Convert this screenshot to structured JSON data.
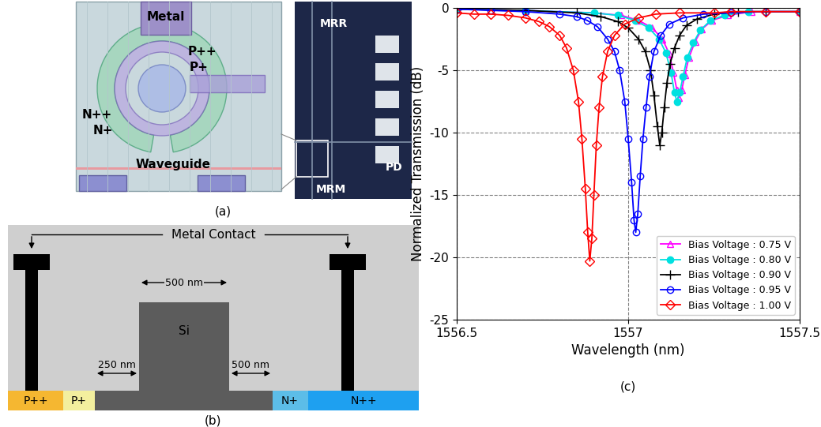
{
  "panel_a": {
    "caption": "(a)",
    "layout_labels": {
      "metal": "Metal",
      "p_plus_plus": "P++",
      "p_plus": "P+",
      "n_plus_plus": "N++",
      "n_plus": "N+",
      "waveguide": "Waveguide"
    },
    "micrograph_labels": {
      "mrr": "MRR",
      "pd": "PD",
      "mrm": "MRM"
    }
  },
  "panel_b": {
    "caption": "(b)",
    "contact_label": "Metal Contact",
    "core": "Si",
    "regions": {
      "p_plus_plus": "P++",
      "p_plus": "P+",
      "n_plus": "N+",
      "n_plus_plus": "N++"
    },
    "dimensions": {
      "rib_width": "500 nm",
      "p_gap": "250 nm",
      "n_gap": "500 nm"
    }
  },
  "chart_data": {
    "type": "line",
    "caption": "(c)",
    "x_label": "Wavelength (nm)",
    "y_label": "Normalized Transmission (dB)",
    "xlim": [
      1556.5,
      1557.5
    ],
    "xticks": [
      1556.5,
      1557,
      1557.5
    ],
    "ylim": [
      -25,
      0
    ],
    "yticks": [
      -25,
      -20,
      -15,
      -10,
      -5,
      0
    ],
    "grid": true,
    "legend": "lower right",
    "series": [
      {
        "name": "Bias Voltage : 0.75 V",
        "color": "#ff00ff",
        "marker": "triangle",
        "line_style": "solid",
        "x": [
          1556.5,
          1556.7,
          1556.9,
          1556.98,
          1557.03,
          1557.07,
          1557.1,
          1557.12,
          1557.132,
          1557.142,
          1557.148,
          1557.156,
          1557.165,
          1557.177,
          1557.195,
          1557.215,
          1557.245,
          1557.29,
          1557.36,
          1557.5
        ],
        "values": [
          -0.1,
          -0.2,
          -0.4,
          -0.6,
          -1.0,
          -1.6,
          -2.5,
          -3.7,
          -5.2,
          -6.6,
          -7.2,
          -6.6,
          -5.4,
          -4.0,
          -2.7,
          -1.7,
          -1.0,
          -0.6,
          -0.3,
          -0.3
        ]
      },
      {
        "name": "Bias Voltage : 0.80 V",
        "color": "#00e0e0",
        "marker": "dot",
        "line_style": "solid",
        "x": [
          1556.5,
          1556.7,
          1556.9,
          1556.97,
          1557.02,
          1557.06,
          1557.09,
          1557.11,
          1557.125,
          1557.135,
          1557.142,
          1557.15,
          1557.16,
          1557.172,
          1557.19,
          1557.21,
          1557.24,
          1557.28,
          1557.35,
          1557.5
        ],
        "values": [
          -0.1,
          -0.2,
          -0.4,
          -0.6,
          -1.0,
          -1.6,
          -2.5,
          -3.6,
          -5.2,
          -6.8,
          -7.5,
          -6.8,
          -5.5,
          -4.0,
          -2.8,
          -1.8,
          -1.0,
          -0.6,
          -0.3,
          -0.3
        ]
      },
      {
        "name": "Bias Voltage : 0.90 V",
        "color": "#000000",
        "marker": "plus",
        "line_style": "solid",
        "x": [
          1556.5,
          1556.7,
          1556.85,
          1556.92,
          1556.97,
          1557.0,
          1557.03,
          1557.05,
          1557.065,
          1557.075,
          1557.085,
          1557.092,
          1557.098,
          1557.105,
          1557.113,
          1557.122,
          1557.135,
          1557.15,
          1557.17,
          1557.2,
          1557.25,
          1557.32,
          1557.4,
          1557.5
        ],
        "values": [
          -0.1,
          -0.2,
          -0.4,
          -0.7,
          -1.1,
          -1.6,
          -2.5,
          -3.5,
          -5.0,
          -7.0,
          -9.5,
          -11.0,
          -10.0,
          -8.0,
          -6.0,
          -4.5,
          -3.2,
          -2.2,
          -1.4,
          -0.9,
          -0.5,
          -0.3,
          -0.3,
          -0.3
        ]
      },
      {
        "name": "Bias Voltage : 0.95 V",
        "color": "#0000ff",
        "marker": "circle",
        "line_style": "solid",
        "x": [
          1556.5,
          1556.6,
          1556.7,
          1556.8,
          1556.85,
          1556.88,
          1556.91,
          1556.94,
          1556.96,
          1556.975,
          1556.99,
          1557.0,
          1557.01,
          1557.017,
          1557.022,
          1557.028,
          1557.035,
          1557.043,
          1557.052,
          1557.062,
          1557.075,
          1557.095,
          1557.12,
          1557.16,
          1557.22,
          1557.3,
          1557.4,
          1557.5
        ],
        "values": [
          -0.1,
          -0.2,
          -0.3,
          -0.5,
          -0.7,
          -1.0,
          -1.5,
          -2.5,
          -3.5,
          -5.0,
          -7.5,
          -10.5,
          -14.0,
          -17.0,
          -18.0,
          -16.5,
          -13.5,
          -10.5,
          -8.0,
          -5.5,
          -3.5,
          -2.2,
          -1.3,
          -0.8,
          -0.5,
          -0.4,
          -0.3,
          -0.3
        ]
      },
      {
        "name": "Bias Voltage : 1.00 V",
        "color": "#ff0000",
        "marker": "diamond",
        "line_style": "solid",
        "x": [
          1556.5,
          1556.55,
          1556.6,
          1556.65,
          1556.7,
          1556.74,
          1556.77,
          1556.8,
          1556.82,
          1556.84,
          1556.855,
          1556.865,
          1556.875,
          1556.882,
          1556.888,
          1556.894,
          1556.9,
          1556.907,
          1556.915,
          1556.925,
          1556.94,
          1556.96,
          1556.99,
          1557.03,
          1557.08,
          1557.15,
          1557.25,
          1557.3,
          1557.4,
          1557.5
        ],
        "values": [
          -0.4,
          -0.5,
          -0.5,
          -0.6,
          -0.8,
          -1.1,
          -1.5,
          -2.2,
          -3.2,
          -5.0,
          -7.5,
          -10.5,
          -14.5,
          -18.0,
          -20.3,
          -18.5,
          -15.0,
          -11.0,
          -8.0,
          -5.5,
          -3.5,
          -2.2,
          -1.3,
          -0.8,
          -0.5,
          -0.4,
          -0.4,
          -0.3,
          -0.3,
          -0.3
        ]
      }
    ]
  }
}
